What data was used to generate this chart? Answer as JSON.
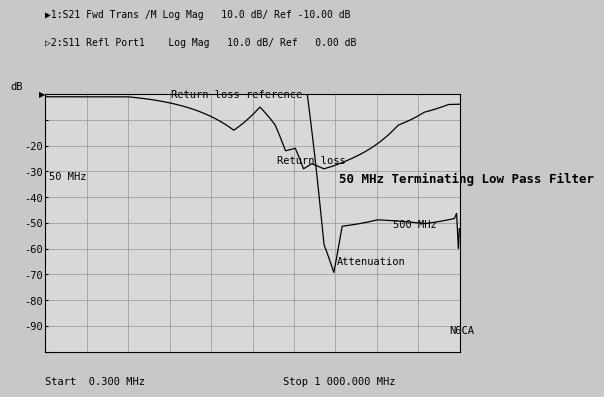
{
  "title": "50 MHz Terminating Low Pass Filter",
  "header_line1": "▶1:S21 Fwd Trans /M Log Mag   10.0 dB/ Ref -10.00 dB",
  "header_line2": "▷2:S11 Refl Port1    Log Mag   10.0 dB/ Ref   0.00 dB",
  "xlabel_start": "Start  0.300 MHz",
  "xlabel_stop": "Stop 1 000.000 MHz",
  "ylabel": "dB",
  "annotation_n6ca": "N6CA",
  "annotation_50mhz": "50 MHz",
  "annotation_500mhz": "500 MHz",
  "annotation_return_loss_ref": "Return loss reference",
  "annotation_return_loss": "Return loss",
  "annotation_attenuation": "Attenuation",
  "background_color": "#c8c8c8",
  "plot_bg_color": "#d8d8d8",
  "grid_color": "#999999",
  "line_color": "#000000",
  "text_color": "#000000",
  "font_size_header": 7.0,
  "font_size_annotation": 7.5,
  "font_size_title": 9.0,
  "font_size_axis": 7.5
}
